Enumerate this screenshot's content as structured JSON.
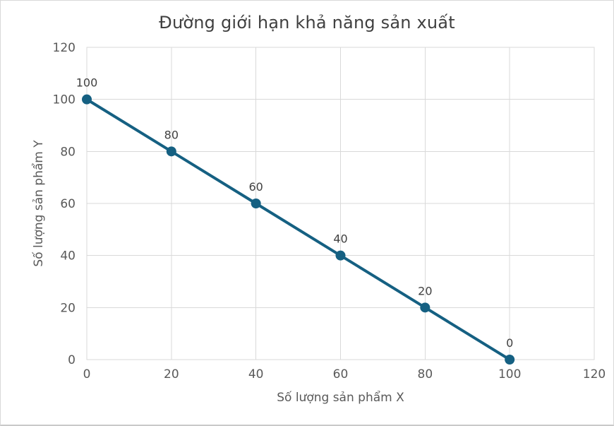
{
  "chart_data": {
    "type": "line",
    "title": "Đường giới hạn khả năng sản xuất",
    "xlabel": "Số lượng sản phẩm X",
    "ylabel": "Số lượng sản phẩm Y",
    "x": [
      0,
      20,
      40,
      60,
      80,
      100
    ],
    "y": [
      100,
      80,
      60,
      40,
      20,
      0
    ],
    "data_labels": [
      "100",
      "80",
      "60",
      "40",
      "20",
      "0"
    ],
    "xlim": [
      0,
      120
    ],
    "ylim": [
      0,
      120
    ],
    "xticks": [
      0,
      20,
      40,
      60,
      80,
      100,
      120
    ],
    "yticks": [
      0,
      20,
      40,
      60,
      80,
      100,
      120
    ],
    "grid": true,
    "legend": "none",
    "colors": {
      "series": "#156082",
      "grid": "#d9d9d9",
      "plot_border": "#d9d9d9",
      "tick_text": "#595959",
      "axis_title_text": "#595959",
      "title_text": "#404040",
      "data_label_text": "#404040"
    }
  }
}
